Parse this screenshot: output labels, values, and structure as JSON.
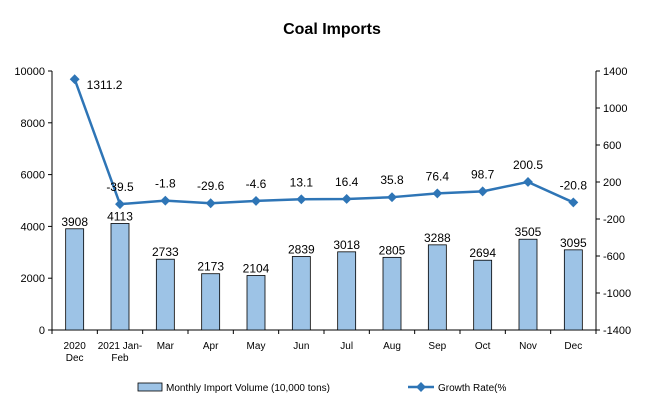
{
  "chart_data": {
    "type": "bar",
    "title": "Coal Imports",
    "categories": [
      [
        "2020",
        "Dec"
      ],
      [
        "2021 Jan-",
        "Feb"
      ],
      [
        "Mar"
      ],
      [
        "Apr"
      ],
      [
        "May"
      ],
      [
        "Jun"
      ],
      [
        "Jul"
      ],
      [
        "Aug"
      ],
      [
        "Sep"
      ],
      [
        "Oct"
      ],
      [
        "Nov"
      ],
      [
        "Dec"
      ]
    ],
    "series": [
      {
        "name": "Monthly Import Volume (10,000 tons)",
        "type": "bar",
        "axis": "left",
        "color": "#9DC3E6",
        "values": [
          3908,
          4113,
          2733,
          2173,
          2104,
          2839,
          3018,
          2805,
          3288,
          2694,
          3505,
          3095
        ],
        "labels": [
          "3908",
          "4113",
          "2733",
          "2173",
          "2104",
          "2839",
          "3018",
          "2805",
          "3288",
          "2694",
          "3505",
          "3095"
        ]
      },
      {
        "name": "Growth Rate(%",
        "type": "line",
        "axis": "right",
        "color": "#2E75B6",
        "values": [
          1311.2,
          -39.5,
          -1.8,
          -29.6,
          -4.6,
          13.1,
          16.4,
          35.8,
          76.4,
          98.7,
          200.5,
          -20.8
        ],
        "labels": [
          "1311.2",
          "-39.5",
          "-1.8",
          "-29.6",
          "-4.6",
          "13.1",
          "16.4",
          "35.8",
          "76.4",
          "98.7",
          "200.5",
          "-20.8"
        ]
      }
    ],
    "y_left": {
      "min": 0,
      "max": 10000,
      "ticks": [
        0,
        2000,
        4000,
        6000,
        8000,
        10000
      ]
    },
    "y_right": {
      "min": -1400,
      "max": 1400,
      "ticks": [
        -1400,
        -1000,
        -600,
        -200,
        200,
        600,
        1000,
        1400
      ]
    },
    "legend_position": "bottom"
  }
}
